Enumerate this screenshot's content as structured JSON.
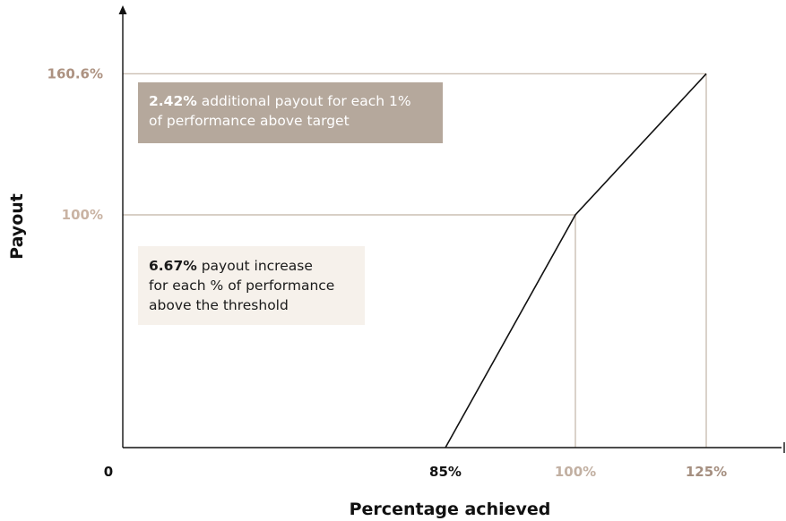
{
  "chart_data": {
    "type": "line",
    "xlabel": "Percentage achieved",
    "ylabel": "Payout",
    "x_ticks": [
      {
        "label": "0",
        "value": 0,
        "highlight": false
      },
      {
        "label": "85%",
        "value": 85,
        "highlight": false
      },
      {
        "label": "100%",
        "value": 100,
        "highlight": true
      },
      {
        "label": "125%",
        "value": 125,
        "highlight": true
      }
    ],
    "y_ticks": [
      {
        "label": "100%",
        "value": 100
      },
      {
        "label": "160.6%",
        "value": 160.6
      }
    ],
    "series": [
      {
        "x": [
          85,
          100,
          125
        ],
        "y": [
          0,
          100,
          160.6
        ]
      }
    ],
    "reference_lines": [
      {
        "x": 100,
        "y": 100
      },
      {
        "x": 125,
        "y": 160.6
      }
    ],
    "annotations": [
      {
        "bold": "2.42%",
        "lines": [
          " additional payout for each 1%",
          "of performance above target"
        ]
      },
      {
        "bold": "6.67%",
        "lines": [
          " payout increase",
          "for each % of performance",
          "above the threshold"
        ]
      }
    ]
  },
  "colors": {
    "axis": "#111111",
    "line": "#111111",
    "guide": "#cbbfb3",
    "tick_y": "#b89e8c",
    "tick_x_dark": "#111111",
    "tick_x_light": "#c2b0a2",
    "note_dark_bg": "#b5a89c",
    "note_light_bg": "#f6f1eb"
  }
}
